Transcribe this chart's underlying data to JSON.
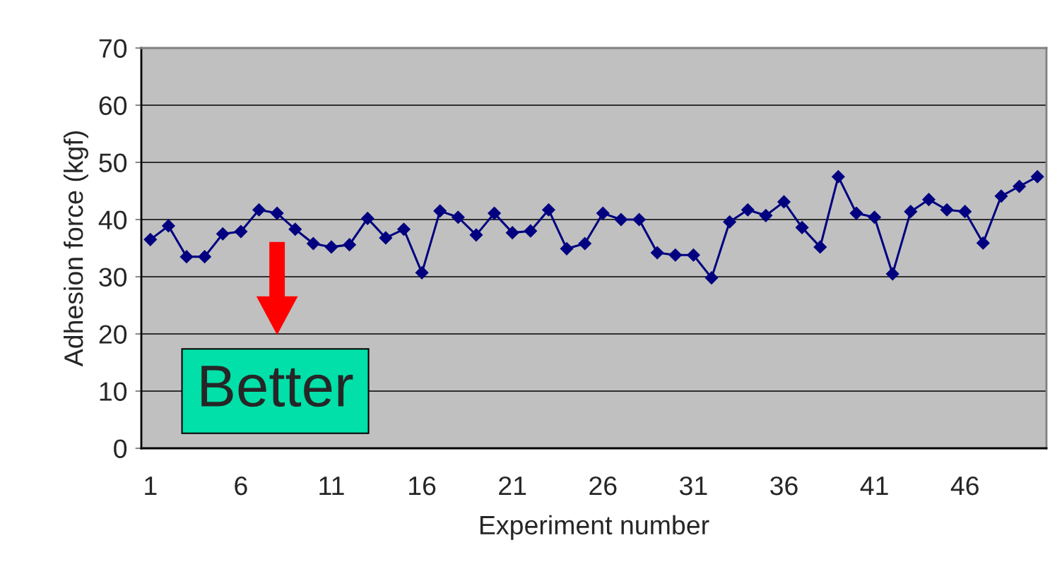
{
  "chart_data": {
    "type": "line",
    "xlabel": "Experiment number",
    "ylabel": "Adhesion force (kgf)",
    "categories": [
      "1",
      null,
      null,
      null,
      null,
      "6",
      null,
      null,
      null,
      null,
      "11",
      null,
      null,
      null,
      null,
      "16",
      null,
      null,
      null,
      null,
      "21",
      null,
      null,
      null,
      null,
      "26",
      null,
      null,
      null,
      null,
      "31",
      null,
      null,
      null,
      null,
      "36",
      null,
      null,
      null,
      null,
      "41",
      null,
      null,
      null,
      null,
      "46",
      null,
      null,
      null,
      null
    ],
    "series": [
      {
        "color": "#000080",
        "values": [
          36.5,
          38.9,
          33.5,
          33.5,
          37.5,
          37.9,
          41.7,
          41.1,
          38.3,
          35.8,
          35.2,
          35.6,
          40.2,
          36.8,
          38.3,
          30.7,
          41.5,
          40.4,
          37.3,
          41.1,
          37.7,
          38.0,
          41.7,
          34.9,
          35.8,
          41.1,
          40.0,
          40.0,
          34.2,
          33.8,
          33.8,
          29.8,
          39.6,
          41.7,
          40.7,
          43.1,
          38.6,
          35.2,
          47.5,
          41.1,
          40.4,
          30.5,
          41.4,
          43.5,
          41.7,
          41.4,
          35.9,
          44.1,
          45.8,
          47.5
        ]
      }
    ],
    "ylim": [
      0,
      70
    ],
    "yticks": [
      0,
      10,
      20,
      30,
      40,
      50,
      60,
      70
    ],
    "grid": "y",
    "marker": "diamond",
    "line_style": "solid",
    "annotations": [
      "Better"
    ]
  }
}
